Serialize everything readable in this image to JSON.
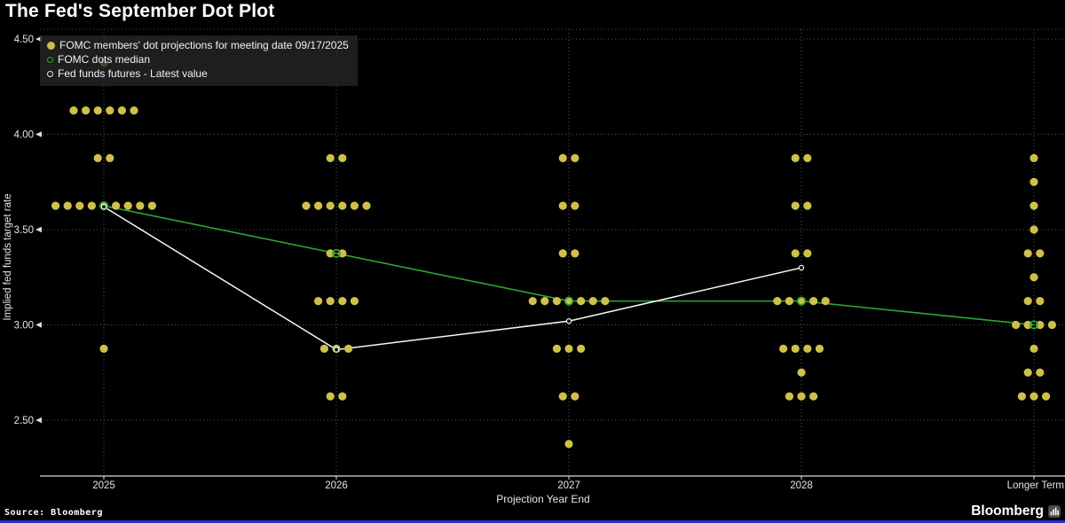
{
  "page": {
    "title": "The Fed's September Dot Plot",
    "source": "Source: Bloomberg",
    "brand": "Bloomberg"
  },
  "legend": {
    "items": [
      {
        "label": "FOMC members' dot projections for meeting date 09/17/2025",
        "marker": "dot-filled",
        "color": "#cfc04b"
      },
      {
        "label": "FOMC dots median",
        "marker": "circle-outline",
        "color": "#2ba832"
      },
      {
        "label": "Fed funds futures - Latest value",
        "marker": "circle-outline",
        "color": "#e8e8e8"
      }
    ]
  },
  "chart_data": {
    "type": "scatter",
    "title": "The Fed's September Dot Plot",
    "xlabel": "Projection Year End",
    "ylabel": "Implied fed funds target rate",
    "categories": [
      "2025",
      "2026",
      "2027",
      "2028",
      "Longer Term"
    ],
    "ytick_labels": [
      "4.50",
      "4.00",
      "3.50",
      "3.00",
      "2.50"
    ],
    "yticks": [
      4.5,
      4.0,
      3.5,
      3.0,
      2.5
    ],
    "ylim": [
      2.2,
      4.55
    ],
    "grid": "dotted",
    "legend_position": "top-left",
    "dot_projections": [
      {
        "year": "2025",
        "dots": [
          {
            "rate": 4.375,
            "count": 1
          },
          {
            "rate": 4.125,
            "count": 6
          },
          {
            "rate": 3.875,
            "count": 2
          },
          {
            "rate": 3.625,
            "count": 9
          },
          {
            "rate": 2.875,
            "count": 1
          }
        ]
      },
      {
        "year": "2026",
        "dots": [
          {
            "rate": 3.875,
            "count": 2
          },
          {
            "rate": 3.625,
            "count": 6
          },
          {
            "rate": 3.375,
            "count": 2
          },
          {
            "rate": 3.125,
            "count": 4
          },
          {
            "rate": 2.875,
            "count": 3
          },
          {
            "rate": 2.625,
            "count": 2
          }
        ]
      },
      {
        "year": "2027",
        "dots": [
          {
            "rate": 3.875,
            "count": 2
          },
          {
            "rate": 3.625,
            "count": 2
          },
          {
            "rate": 3.375,
            "count": 2
          },
          {
            "rate": 3.125,
            "count": 7
          },
          {
            "rate": 2.875,
            "count": 3
          },
          {
            "rate": 2.625,
            "count": 2
          },
          {
            "rate": 2.375,
            "count": 1
          }
        ]
      },
      {
        "year": "2028",
        "dots": [
          {
            "rate": 3.875,
            "count": 2
          },
          {
            "rate": 3.625,
            "count": 2
          },
          {
            "rate": 3.375,
            "count": 2
          },
          {
            "rate": 3.125,
            "count": 5
          },
          {
            "rate": 2.875,
            "count": 4
          },
          {
            "rate": 2.75,
            "count": 1
          },
          {
            "rate": 2.625,
            "count": 3
          }
        ]
      },
      {
        "year": "Longer Term",
        "dots": [
          {
            "rate": 3.875,
            "count": 1
          },
          {
            "rate": 3.75,
            "count": 1
          },
          {
            "rate": 3.625,
            "count": 1
          },
          {
            "rate": 3.5,
            "count": 1
          },
          {
            "rate": 3.375,
            "count": 2
          },
          {
            "rate": 3.25,
            "count": 1
          },
          {
            "rate": 3.125,
            "count": 2
          },
          {
            "rate": 3.0,
            "count": 4
          },
          {
            "rate": 2.875,
            "count": 1
          },
          {
            "rate": 2.75,
            "count": 2
          },
          {
            "rate": 2.625,
            "count": 3
          }
        ]
      }
    ],
    "series": [
      {
        "name": "FOMC dots median",
        "type": "line",
        "x": [
          "2025",
          "2026",
          "2027",
          "2028",
          "Longer Term"
        ],
        "values": [
          3.625,
          3.375,
          3.125,
          3.125,
          3.0
        ]
      },
      {
        "name": "Fed funds futures - Latest value",
        "type": "line",
        "x": [
          "2025",
          "2026",
          "2027",
          "2028"
        ],
        "values": [
          3.62,
          2.87,
          3.02,
          3.3
        ]
      }
    ],
    "colors": {
      "dots": "#cfc04b",
      "median_line": "#2ba832",
      "futures_line": "#f5f5f5",
      "grid": "#585858",
      "axis": "#dcdcdc",
      "text": "#e6e6e6",
      "background": "#000000",
      "bottom_bar": "#2a2ac9"
    }
  }
}
